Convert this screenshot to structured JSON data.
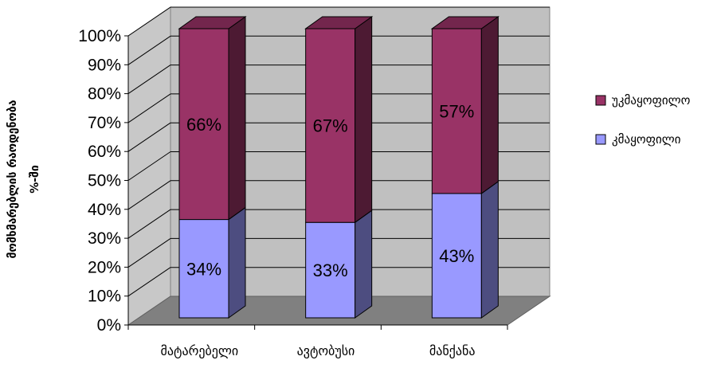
{
  "chart_data": {
    "type": "bar",
    "stacked": true,
    "three_d": true,
    "categories": [
      "მატარებელი",
      "ავტობუსი",
      "მანქანა"
    ],
    "series": [
      {
        "name": "კმაყოფილი",
        "values": [
          34,
          33,
          43
        ],
        "labels": [
          "34%",
          "33%",
          "43%"
        ],
        "color": "#9999FF"
      },
      {
        "name": "უკმაყოფილო",
        "values": [
          66,
          67,
          57
        ],
        "labels": [
          "66%",
          "67%",
          "57%"
        ],
        "color": "#993366"
      }
    ],
    "ylabel_lines": [
      "მომხმარებლის  რაოდენობა",
      "%-ში"
    ],
    "yticks": [
      "0%",
      "10%",
      "20%",
      "30%",
      "40%",
      "50%",
      "60%",
      "70%",
      "80%",
      "90%",
      "100%"
    ],
    "ylim": [
      0,
      100
    ],
    "grid": true,
    "legend_position": "right"
  }
}
